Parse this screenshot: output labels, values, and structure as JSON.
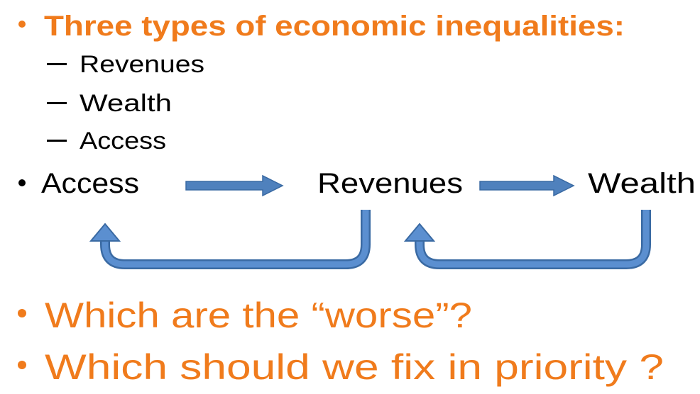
{
  "heading": {
    "text": "Three types of economic inequalities:",
    "items": [
      "Revenues",
      "Wealth",
      "Access"
    ]
  },
  "flow": {
    "nodes": [
      "Access",
      "Revenues",
      "Wealth"
    ]
  },
  "questions": [
    "Which are the “worse”?",
    "Which should we fix in priority ?"
  ]
}
